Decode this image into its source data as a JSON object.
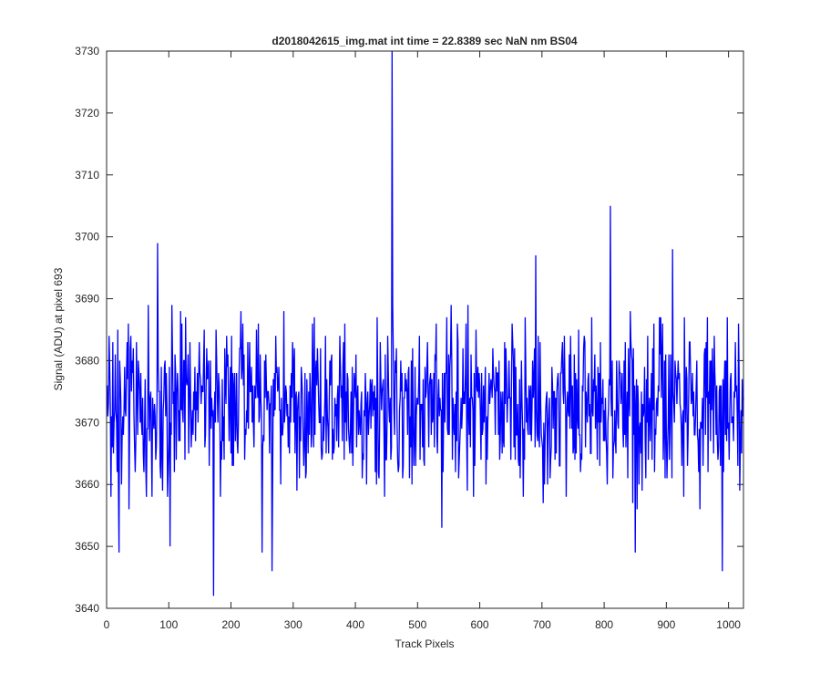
{
  "chart_data": {
    "type": "line",
    "title": "d2018042615_img.mat int time = 22.8389 sec  NaN nm BS04",
    "xlabel": "Track Pixels",
    "ylabel": "Signal (ADU) at pixel 693",
    "xlim": [
      0,
      1024
    ],
    "ylim": [
      3640,
      3730
    ],
    "xticks": [
      0,
      100,
      200,
      300,
      400,
      500,
      600,
      700,
      800,
      900,
      1000
    ],
    "yticks": [
      3640,
      3650,
      3660,
      3670,
      3680,
      3690,
      3700,
      3710,
      3720,
      3730
    ],
    "grid": false,
    "line_color": "#0000ff",
    "series": [
      {
        "x_start": 1,
        "x_step": 1,
        "values_note_count": 1024,
        "baseline": 3673,
        "values": []
      }
    ],
    "highlights": [
      {
        "x": 20,
        "y": 3649
      },
      {
        "x": 82,
        "y": 3699
      },
      {
        "x": 102,
        "y": 3650
      },
      {
        "x": 172,
        "y": 3642
      },
      {
        "x": 250,
        "y": 3649
      },
      {
        "x": 266,
        "y": 3646
      },
      {
        "x": 459,
        "y": 3730
      },
      {
        "x": 690,
        "y": 3697
      },
      {
        "x": 810,
        "y": 3705
      },
      {
        "x": 850,
        "y": 3649
      },
      {
        "x": 910,
        "y": 3698
      },
      {
        "x": 990,
        "y": 3646
      }
    ]
  }
}
